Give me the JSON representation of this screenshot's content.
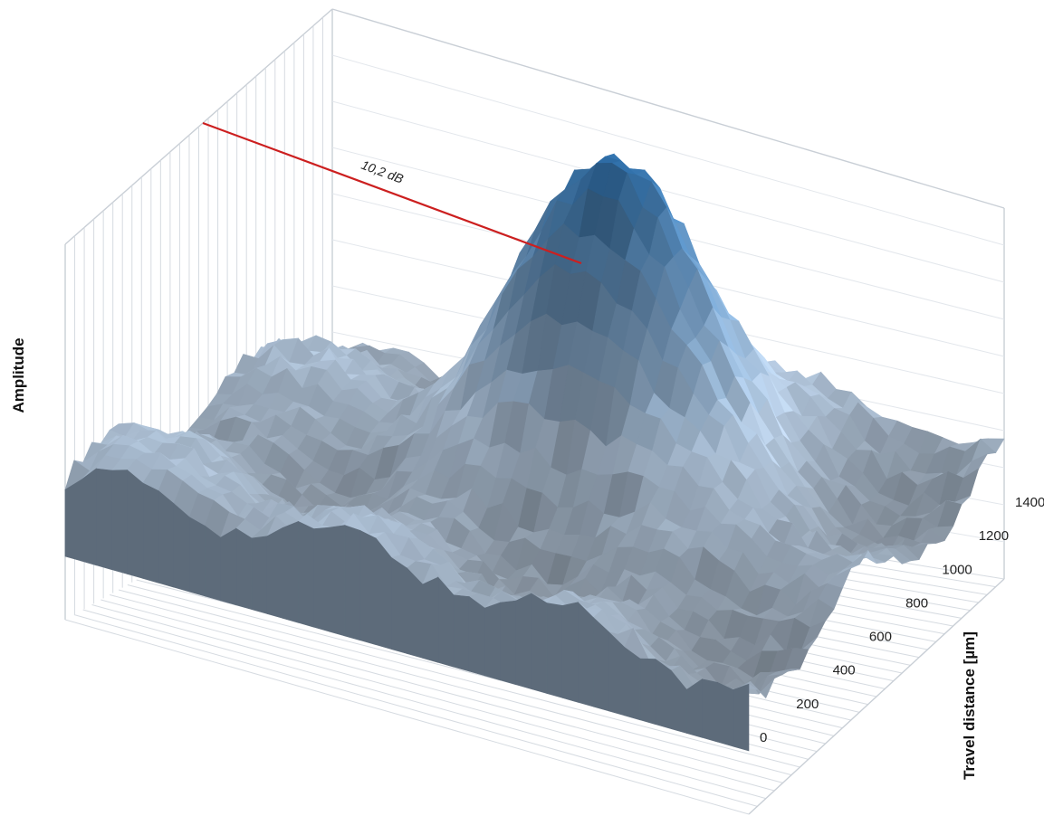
{
  "chart_data": {
    "type": "surface3d",
    "ylabel": "Amplitude",
    "depth_axis": {
      "label": "Travel distance [µm]",
      "ticks": [
        0,
        200,
        400,
        600,
        800,
        1000,
        1200,
        1400
      ],
      "range": [
        0,
        1400
      ]
    },
    "annotation": {
      "text": "10,2 dB",
      "color": "#cc1f1f"
    },
    "surface": {
      "shape": "single gaussian peak on noisy baseline",
      "peak_depth_um": 1000,
      "colors": {
        "low": "#8d99a6",
        "mid": "#b8cfe8",
        "high": "#2e6faa"
      }
    },
    "grid": true
  }
}
